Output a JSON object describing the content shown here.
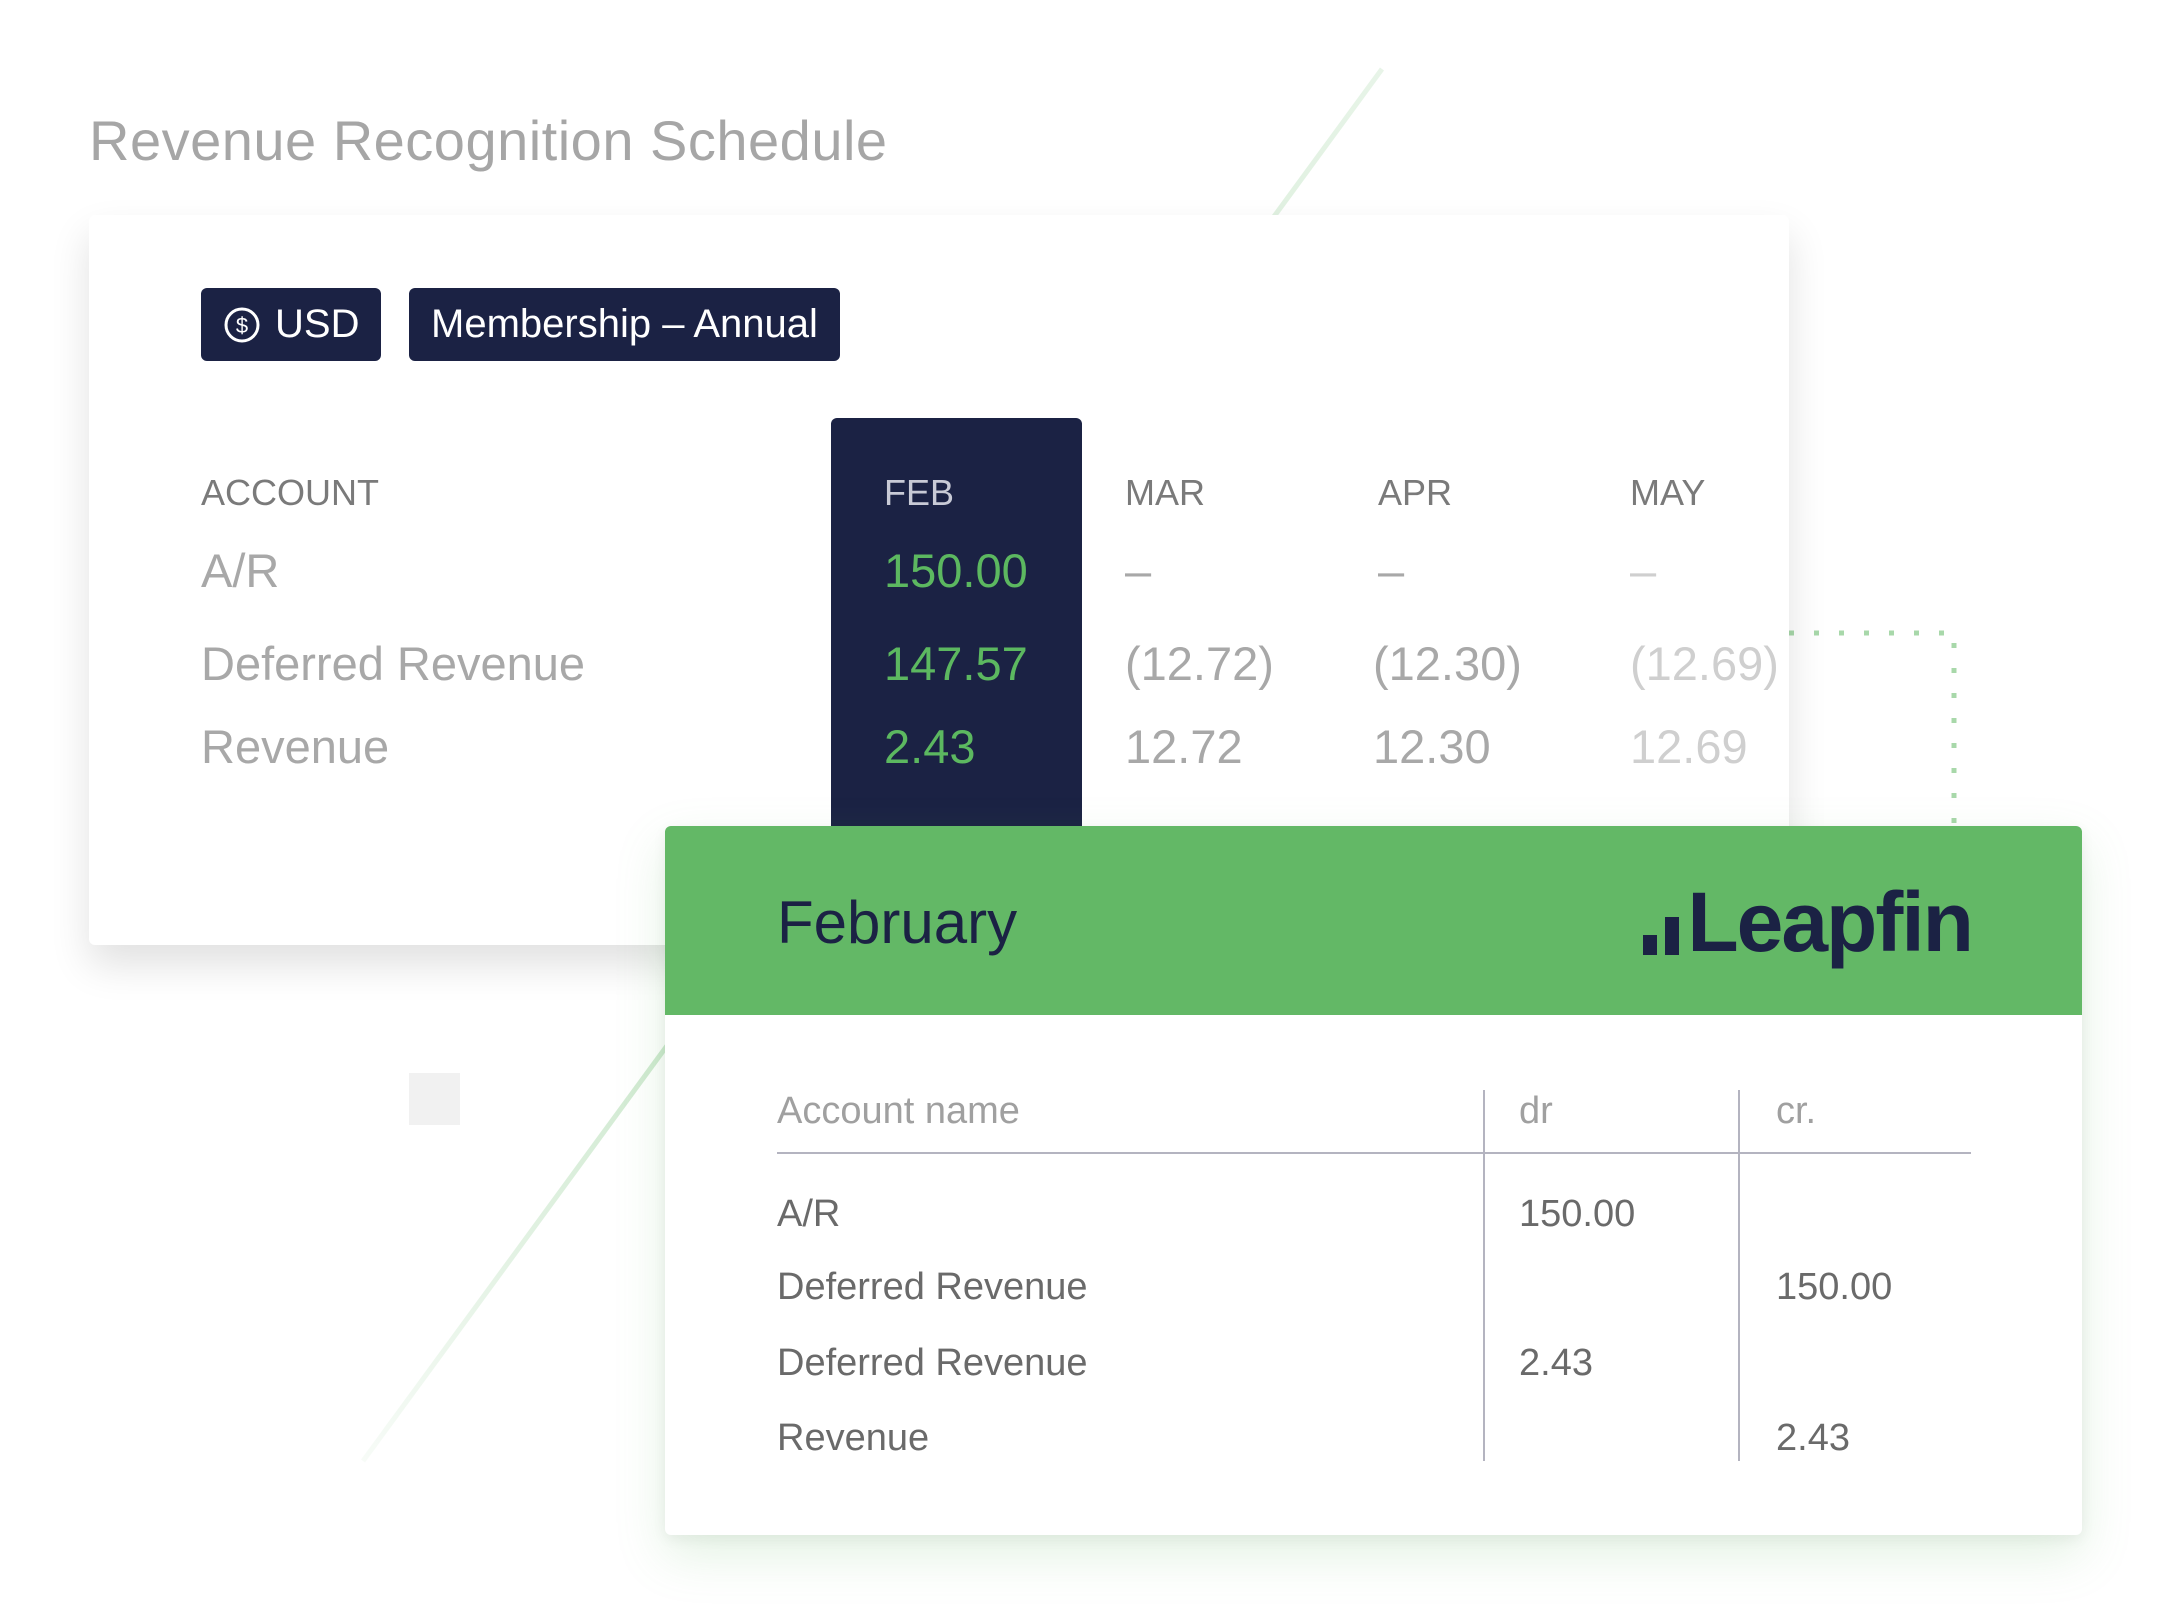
{
  "title": "Revenue Recognition Schedule",
  "filters": {
    "currency_icon": "dollar-circle-icon",
    "currency": "USD",
    "product": "Membership – Annual"
  },
  "schedule": {
    "headers": [
      "ACCOUNT",
      "FEB",
      "MAR",
      "APR",
      "MAY"
    ],
    "rows": [
      {
        "account": "A/R",
        "values": [
          "150.00",
          "–",
          "–",
          "–"
        ]
      },
      {
        "account": "Deferred Revenue",
        "values": [
          "147.57",
          "(12.72)",
          "(12.30)",
          "(12.69)"
        ]
      },
      {
        "account": "Revenue",
        "values": [
          "2.43",
          "12.72",
          "12.30",
          "12.69"
        ]
      }
    ],
    "highlighted_month": "FEB"
  },
  "journal": {
    "title": "February",
    "logo": "Leapfin",
    "headers": [
      "Account name",
      "dr",
      "cr."
    ],
    "rows": [
      {
        "account": "A/R",
        "dr": "150.00",
        "cr": ""
      },
      {
        "account": "Deferred Revenue",
        "dr": "",
        "cr": "150.00"
      },
      {
        "account": "Deferred Revenue",
        "dr": "2.43",
        "cr": ""
      },
      {
        "account": "Revenue",
        "dr": "",
        "cr": "2.43"
      }
    ]
  },
  "colors": {
    "navy": "#1b2244",
    "green": "#63b866",
    "value_green": "#5cb860"
  }
}
